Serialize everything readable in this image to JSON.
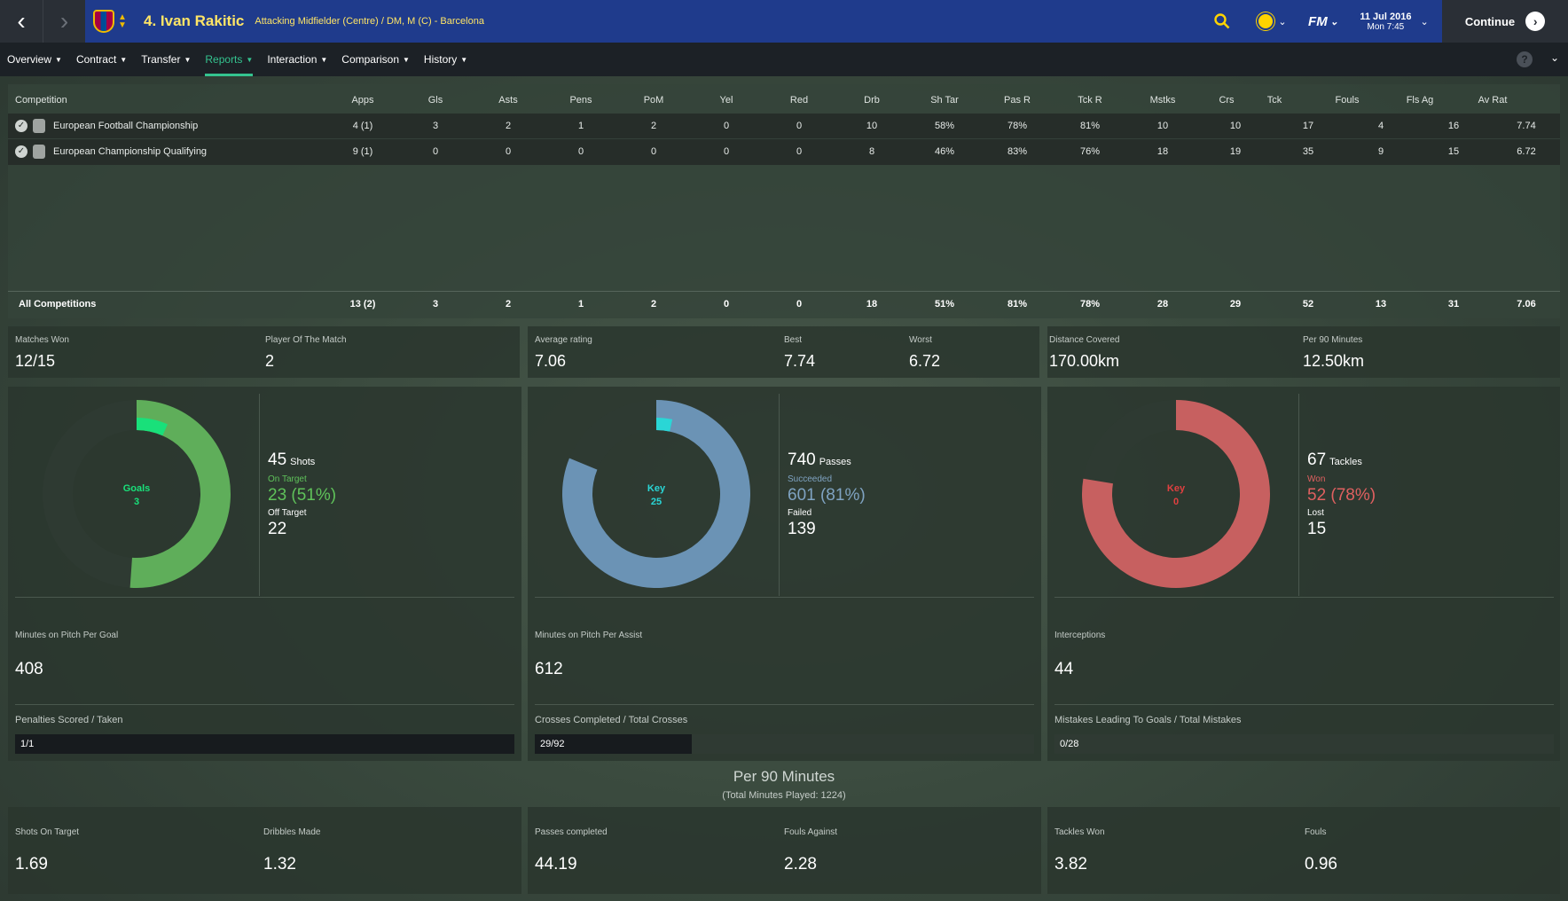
{
  "header": {
    "player_name": "4. Ivan Rakitic",
    "player_subtitle": "Attacking Midfielder (Centre) / DM, M (C) - Barcelona",
    "date": "11 Jul 2016",
    "time": "Mon 7:45",
    "fm_label": "FM",
    "continue_label": "Continue"
  },
  "subnav": [
    {
      "label": "Overview"
    },
    {
      "label": "Contract"
    },
    {
      "label": "Transfer"
    },
    {
      "label": "Reports"
    },
    {
      "label": "Interaction"
    },
    {
      "label": "Comparison"
    },
    {
      "label": "History"
    }
  ],
  "table": {
    "columns": [
      "Competition",
      "Apps",
      "Gls",
      "Asts",
      "Pens",
      "PoM",
      "Yel",
      "Red",
      "Drb",
      "Sh Tar",
      "Pas R",
      "Tck R",
      "Mstks",
      "Crs",
      "Tck",
      "Fouls",
      "Fls Ag",
      "Av Rat"
    ],
    "rows": [
      {
        "name": "European Football Championship",
        "values": [
          "4 (1)",
          "3",
          "2",
          "1",
          "2",
          "0",
          "0",
          "10",
          "58%",
          "78%",
          "81%",
          "10",
          "10",
          "17",
          "4",
          "16",
          "7.74"
        ]
      },
      {
        "name": "European Championship Qualifying",
        "values": [
          "9 (1)",
          "0",
          "0",
          "0",
          "0",
          "0",
          "0",
          "8",
          "46%",
          "83%",
          "76%",
          "18",
          "19",
          "35",
          "9",
          "15",
          "6.72"
        ]
      }
    ],
    "total": {
      "name": "All Competitions",
      "values": [
        "13 (2)",
        "3",
        "2",
        "1",
        "2",
        "0",
        "0",
        "18",
        "51%",
        "81%",
        "78%",
        "28",
        "29",
        "52",
        "13",
        "31",
        "7.06"
      ]
    }
  },
  "summary": {
    "matches_won_label": "Matches Won",
    "matches_won": "12/15",
    "pom_label": "Player Of The Match",
    "pom": "2",
    "avg_rating_label": "Average rating",
    "avg_rating": "7.06",
    "best_label": "Best",
    "best": "7.74",
    "worst_label": "Worst",
    "worst": "6.72",
    "distance_label": "Distance Covered",
    "distance": "170.00km",
    "per90_label": "Per 90 Minutes",
    "per90": "12.50km"
  },
  "panels": {
    "shots": {
      "center_label": "Goals",
      "center_value": "3",
      "total": "45",
      "total_label": "Shots",
      "label1": "On Target",
      "value1": "23 (51%)",
      "label2": "Off Target",
      "value2": "22",
      "minutes_label": "Minutes on Pitch Per Goal",
      "minutes": "408",
      "bar_label": "Penalties Scored / Taken",
      "bar_text": "1/1",
      "bar_fraction": 1.0,
      "color": "#5fae5a",
      "accent": "#19e07a",
      "text_color": "#5fc25a"
    },
    "passes": {
      "center_label": "Key",
      "center_value": "25",
      "total": "740",
      "total_label": "Passes",
      "label1": "Succeeded",
      "value1": "601 (81%)",
      "label2": "Failed",
      "value2": "139",
      "minutes_label": "Minutes on Pitch Per Assist",
      "minutes": "612",
      "bar_label": "Crosses Completed / Total Crosses",
      "bar_text": "29/92",
      "bar_fraction": 0.315,
      "color": "#6b93b5",
      "accent": "#2ad6d6",
      "text_color": "#7fa3c2"
    },
    "tackles": {
      "center_label": "Key",
      "center_value": "0",
      "total": "67",
      "total_label": "Tackles",
      "label1": "Won",
      "value1": "52 (78%)",
      "label2": "Lost",
      "value2": "15",
      "minutes_label": "Interceptions",
      "minutes": "44",
      "bar_label": "Mistakes Leading To Goals / Total Mistakes",
      "bar_text": "0/28",
      "bar_fraction": 0.0,
      "color": "#c76060",
      "accent": "#e04040",
      "text_color": "#e06060"
    }
  },
  "per90": {
    "title": "Per 90 Minutes",
    "subtitle": "(Total Minutes Played: 1224)",
    "items": [
      {
        "label": "Shots On Target",
        "value": "1.69"
      },
      {
        "label": "Dribbles Made",
        "value": "1.32"
      },
      {
        "label": "Passes completed",
        "value": "44.19"
      },
      {
        "label": "Fouls Against",
        "value": "2.28"
      },
      {
        "label": "Tackles Won",
        "value": "3.82"
      },
      {
        "label": "Fouls",
        "value": "0.96"
      }
    ]
  },
  "chart_data": [
    {
      "type": "pie",
      "categories": [
        "On Target",
        "Off Target"
      ],
      "values": [
        23,
        22
      ],
      "highlight": "Goals",
      "highlight_value": 3
    },
    {
      "type": "pie",
      "categories": [
        "Succeeded",
        "Failed"
      ],
      "values": [
        601,
        139
      ],
      "highlight": "Key",
      "highlight_value": 25
    },
    {
      "type": "pie",
      "categories": [
        "Won",
        "Lost"
      ],
      "values": [
        52,
        15
      ],
      "highlight": "Key",
      "highlight_value": 0
    }
  ]
}
